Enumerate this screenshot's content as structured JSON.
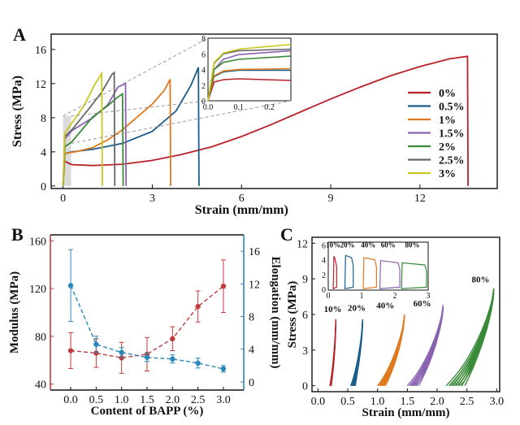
{
  "panels": {
    "a": "A",
    "b": "B",
    "c": "C"
  },
  "colors": {
    "red": "#b8202a",
    "blue": "#1a5c8a",
    "orange": "#e07a1e",
    "purple": "#8a63b0",
    "green": "#3a8a3a",
    "gray": "#666666",
    "yellow": "#c8c81e",
    "b_red": "#c43a3a",
    "b_blue": "#2a86b8"
  },
  "chart_data": [
    {
      "id": "A",
      "type": "line",
      "xlabel": "Strain (mm/mm)",
      "ylabel": "Stress (MPa)",
      "xlim": [
        -0.4,
        14.6
      ],
      "ylim": [
        -0.3,
        17.8
      ],
      "xticks": [
        0,
        3,
        6,
        9,
        12
      ],
      "yticks": [
        0,
        4,
        8,
        12,
        16
      ],
      "legend_position": "right",
      "series": [
        {
          "name": "0%",
          "color": "red",
          "points": [
            [
              0,
              0
            ],
            [
              0.04,
              2.9
            ],
            [
              0.3,
              2.5
            ],
            [
              1,
              2.4
            ],
            [
              2,
              2.55
            ],
            [
              3,
              3.0
            ],
            [
              4,
              3.7
            ],
            [
              5,
              4.6
            ],
            [
              6,
              5.8
            ],
            [
              7,
              7.2
            ],
            [
              8,
              8.7
            ],
            [
              9,
              10.2
            ],
            [
              10,
              11.6
            ],
            [
              11,
              12.9
            ],
            [
              12,
              14.0
            ],
            [
              13,
              14.9
            ],
            [
              13.6,
              15.2
            ],
            [
              13.62,
              0
            ]
          ]
        },
        {
          "name": "0.5%",
          "color": "blue",
          "points": [
            [
              0,
              0
            ],
            [
              0.06,
              3.8
            ],
            [
              0.3,
              4.0
            ],
            [
              1,
              4.3
            ],
            [
              2,
              5.0
            ],
            [
              3,
              6.4
            ],
            [
              3.8,
              8.8
            ],
            [
              4.3,
              11.8
            ],
            [
              4.55,
              13.9
            ],
            [
              4.57,
              0
            ]
          ]
        },
        {
          "name": "1%",
          "color": "orange",
          "points": [
            [
              0,
              0
            ],
            [
              0.06,
              3.8
            ],
            [
              0.4,
              4.0
            ],
            [
              1,
              4.5
            ],
            [
              1.5,
              5.4
            ],
            [
              2,
              6.6
            ],
            [
              2.5,
              8.1
            ],
            [
              3,
              9.6
            ],
            [
              3.4,
              11.2
            ],
            [
              3.6,
              12.5
            ],
            [
              3.62,
              0
            ]
          ]
        },
        {
          "name": "1.5%",
          "color": "purple",
          "points": [
            [
              0,
              0
            ],
            [
              0.06,
              5.5
            ],
            [
              0.3,
              6.5
            ],
            [
              1,
              8.0
            ],
            [
              1.5,
              9.5
            ],
            [
              1.85,
              11.6
            ],
            [
              2.1,
              12.0
            ],
            [
              2.12,
              0
            ]
          ]
        },
        {
          "name": "2%",
          "color": "green",
          "points": [
            [
              0,
              0
            ],
            [
              0.06,
              4.6
            ],
            [
              0.3,
              5.2
            ],
            [
              1,
              8.1
            ],
            [
              1.5,
              9.4
            ],
            [
              1.8,
              10.3
            ],
            [
              2.0,
              10.8
            ],
            [
              2.02,
              0
            ]
          ]
        },
        {
          "name": "2.5%",
          "color": "gray",
          "points": [
            [
              0,
              0
            ],
            [
              0.06,
              5.8
            ],
            [
              0.3,
              6.6
            ],
            [
              0.9,
              9.2
            ],
            [
              1.3,
              11.0
            ],
            [
              1.65,
              13.1
            ],
            [
              1.72,
              13.3
            ],
            [
              1.74,
              0
            ]
          ]
        },
        {
          "name": "3%",
          "color": "yellow",
          "points": [
            [
              0,
              0
            ],
            [
              0.06,
              6.2
            ],
            [
              0.3,
              7.4
            ],
            [
              0.7,
              9.4
            ],
            [
              1.05,
              11.8
            ],
            [
              1.3,
              13.2
            ],
            [
              1.32,
              0
            ]
          ]
        }
      ],
      "inset": {
        "xlim": [
          0,
          0.27
        ],
        "ylim": [
          0,
          8
        ],
        "xticks": [
          0.0,
          0.1,
          0.2
        ],
        "yticks": [
          0,
          2,
          4,
          6,
          8
        ],
        "series": [
          {
            "color": "red",
            "points": [
              [
                0,
                0
              ],
              [
                0.02,
                2.4
              ],
              [
                0.05,
                2.7
              ],
              [
                0.1,
                2.8
              ],
              [
                0.27,
                2.6
              ]
            ]
          },
          {
            "color": "blue",
            "points": [
              [
                0,
                0
              ],
              [
                0.02,
                3.1
              ],
              [
                0.05,
                3.7
              ],
              [
                0.1,
                3.9
              ],
              [
                0.27,
                3.9
              ]
            ]
          },
          {
            "color": "orange",
            "points": [
              [
                0,
                0
              ],
              [
                0.02,
                3.2
              ],
              [
                0.05,
                3.8
              ],
              [
                0.1,
                4.0
              ],
              [
                0.27,
                4.1
              ]
            ]
          },
          {
            "color": "purple",
            "points": [
              [
                0,
                0
              ],
              [
                0.02,
                4.0
              ],
              [
                0.05,
                5.3
              ],
              [
                0.1,
                5.9
              ],
              [
                0.27,
                6.4
              ]
            ]
          },
          {
            "color": "green",
            "points": [
              [
                0,
                0
              ],
              [
                0.02,
                4.0
              ],
              [
                0.05,
                4.9
              ],
              [
                0.1,
                5.3
              ],
              [
                0.27,
                5.7
              ]
            ]
          },
          {
            "color": "gray",
            "points": [
              [
                0,
                0
              ],
              [
                0.02,
                4.8
              ],
              [
                0.05,
                6.0
              ],
              [
                0.1,
                6.4
              ],
              [
                0.27,
                6.6
              ]
            ]
          },
          {
            "color": "yellow",
            "points": [
              [
                0,
                0
              ],
              [
                0.02,
                4.9
              ],
              [
                0.05,
                6.1
              ],
              [
                0.1,
                6.6
              ],
              [
                0.27,
                7.2
              ]
            ]
          }
        ]
      }
    },
    {
      "id": "B",
      "type": "line",
      "xlabel": "Content of BAPP (%)",
      "ylabel": "Modulus (MPa)",
      "y2label": "Elongation (mm/mm)",
      "xlim": [
        -0.4,
        3.4
      ],
      "ylim": [
        35,
        165
      ],
      "y2lim": [
        -1,
        18
      ],
      "xticks": [
        0.0,
        0.5,
        1.0,
        1.5,
        2.0,
        2.5,
        3.0
      ],
      "yticks": [
        40,
        80,
        120,
        160
      ],
      "y2ticks": [
        0,
        4,
        8,
        12,
        16
      ],
      "categories": [
        0.0,
        0.5,
        1.0,
        1.5,
        2.0,
        2.5,
        3.0
      ],
      "series": [
        {
          "name": "Modulus",
          "color": "b_red",
          "axis": "left",
          "values": [
            68,
            66,
            62,
            65,
            78,
            105,
            122
          ],
          "errors": [
            15,
            12,
            13,
            14,
            10,
            13,
            22
          ]
        },
        {
          "name": "Elongation",
          "color": "b_blue",
          "axis": "right",
          "values": [
            11.8,
            4.6,
            3.6,
            3.0,
            2.8,
            2.3,
            1.6
          ],
          "errors": [
            4.4,
            1.0,
            0.6,
            0.5,
            0.5,
            0.6,
            0.4
          ]
        }
      ]
    },
    {
      "id": "C",
      "type": "line",
      "xlabel": "Strain (mm/mm)",
      "ylabel": "Stress (MPa)",
      "xlim": [
        -0.1,
        3.05
      ],
      "ylim": [
        -0.5,
        12.5
      ],
      "xticks": [
        0.0,
        0.5,
        1.0,
        1.5,
        2.0,
        2.5,
        3.0
      ],
      "yticks": [
        0,
        3,
        6,
        9,
        12
      ],
      "loops": [
        {
          "label": "10%",
          "color": "red",
          "x0": 0.2,
          "x1": 0.3,
          "peak": 5.6,
          "width": 0.015,
          "cycles": 4,
          "label_at": [
            0.1,
            6.2
          ]
        },
        {
          "label": "20%",
          "color": "blue",
          "x0": 0.55,
          "x1": 0.75,
          "peak": 5.6,
          "width": 0.04,
          "cycles": 5,
          "label_at": [
            0.5,
            6.3
          ]
        },
        {
          "label": "40%",
          "color": "orange",
          "x0": 1.0,
          "x1": 1.45,
          "peak": 6.0,
          "width": 0.07,
          "cycles": 5,
          "label_at": [
            0.98,
            6.5
          ]
        },
        {
          "label": "60%",
          "color": "purple",
          "x0": 1.5,
          "x1": 2.1,
          "peak": 6.8,
          "width": 0.1,
          "cycles": 5,
          "label_at": [
            1.6,
            6.7
          ]
        },
        {
          "label": "80%",
          "color": "green",
          "x0": 2.15,
          "x1": 2.95,
          "peak": 8.2,
          "width": 0.14,
          "cycles": 6,
          "label_at": [
            2.58,
            8.7
          ]
        }
      ],
      "inset": {
        "xlim": [
          0,
          3
        ],
        "ylim": [
          0,
          6.5
        ],
        "xticks": [
          0,
          1,
          2,
          3
        ],
        "yticks": [
          0,
          2,
          4,
          6
        ],
        "labels": [
          "10%",
          "20%",
          "40%",
          "60%",
          "80%"
        ]
      }
    }
  ]
}
